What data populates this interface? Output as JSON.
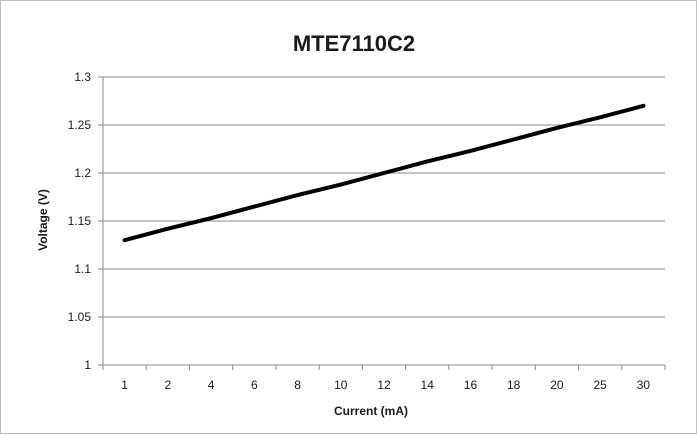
{
  "chart_data": {
    "type": "line",
    "title": "MTE7110C2",
    "xlabel": "Current (mA)",
    "ylabel": "Voltage (V)",
    "categories": [
      "1",
      "2",
      "4",
      "6",
      "8",
      "10",
      "12",
      "14",
      "16",
      "18",
      "20",
      "25",
      "30"
    ],
    "series": [
      {
        "values": [
          1.13,
          1.142,
          1.153,
          1.165,
          1.177,
          1.188,
          1.2,
          1.212,
          1.223,
          1.235,
          1.247,
          1.258,
          1.27
        ]
      }
    ],
    "ylim": [
      1,
      1.3
    ],
    "yticks": [
      "1",
      "1.05",
      "1.1",
      "1.15",
      "1.2",
      "1.25",
      "1.3"
    ],
    "grid": "horizontal",
    "legend": "none",
    "line_color": "#000000",
    "grid_color": "#8c8c8c"
  }
}
